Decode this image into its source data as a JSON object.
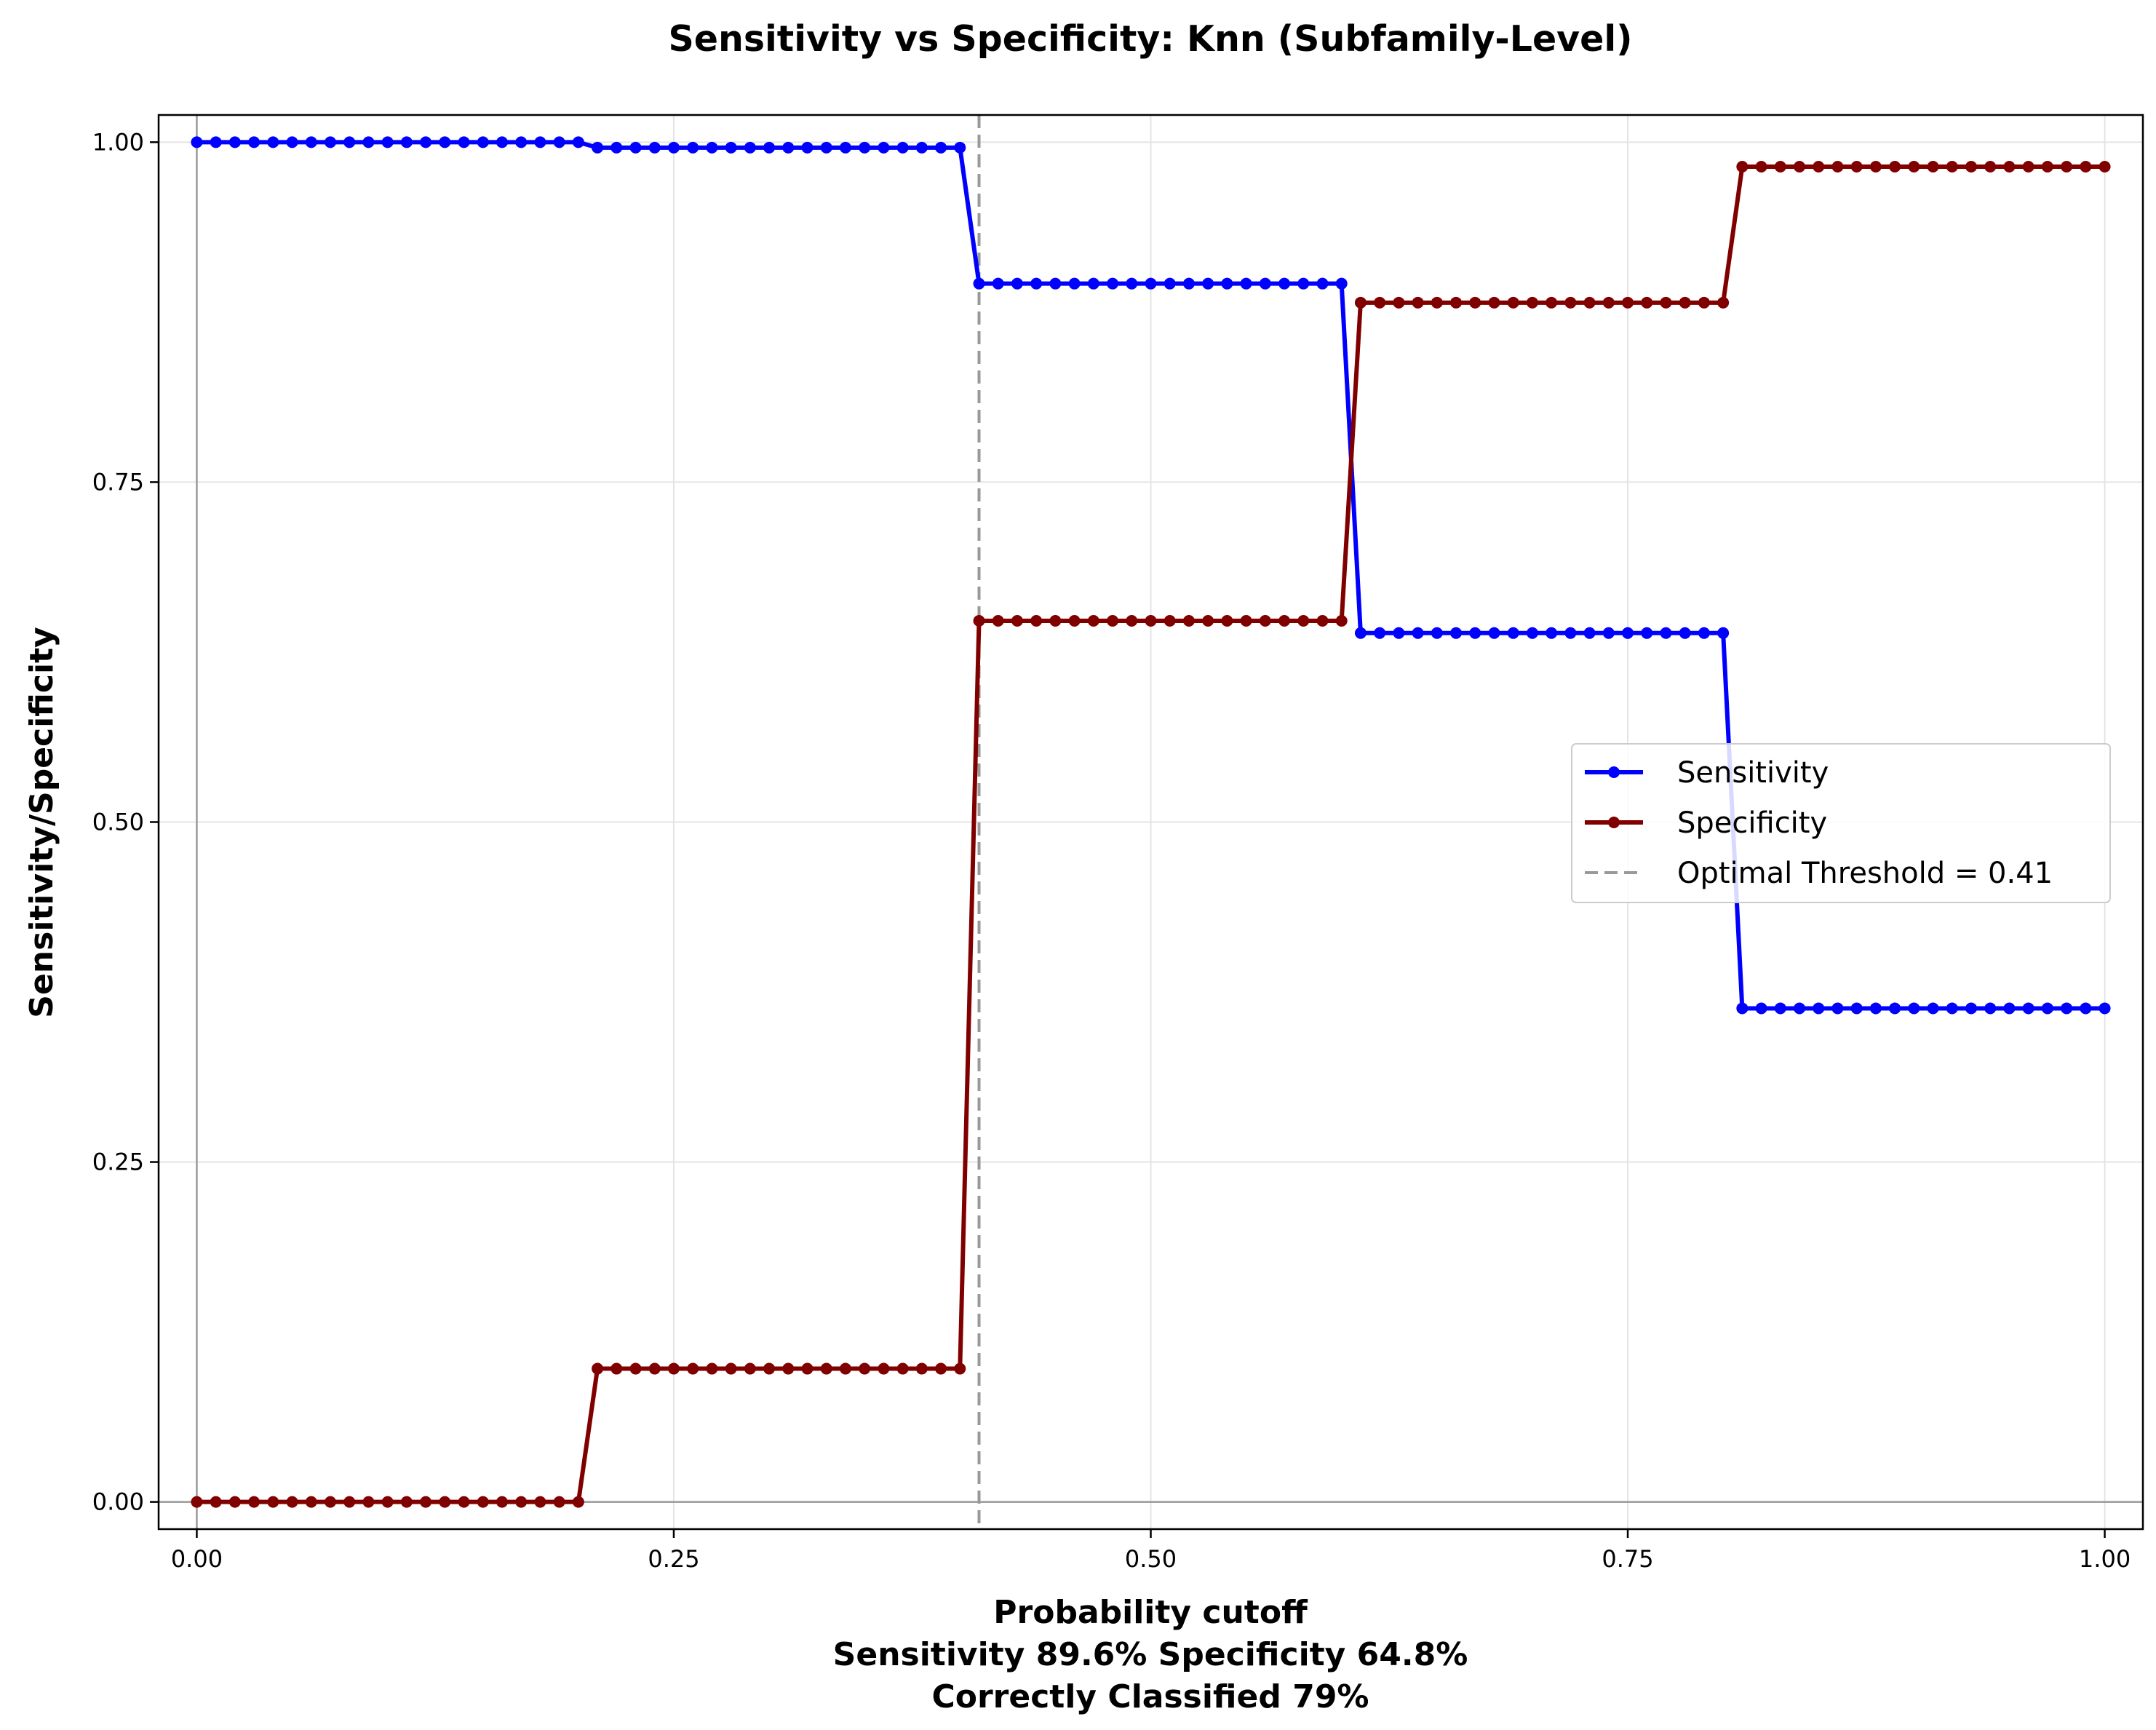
{
  "chart_data": {
    "type": "line",
    "title": "Sensitivity vs Specificity: Knn (Subfamily-Level)",
    "xlabel": "Probability cutoff",
    "xlabel_lines": [
      "Probability cutoff",
      "Sensitivity 89.6% Specificity 64.8%",
      "Correctly Classified 79%"
    ],
    "ylabel": "Sensitivity/Specificity",
    "xlim": [
      -0.02,
      1.02
    ],
    "ylim": [
      -0.02,
      1.02
    ],
    "xticks": [
      0.0,
      0.25,
      0.5,
      0.75,
      1.0
    ],
    "xtick_labels": [
      "0.00",
      "0.25",
      "0.50",
      "0.75",
      "1.00"
    ],
    "yticks": [
      0.0,
      0.25,
      0.5,
      0.75,
      1.0
    ],
    "ytick_labels": [
      "0.00",
      "0.25",
      "0.50",
      "0.75",
      "1.00"
    ],
    "grid": true,
    "legend_position": "center-right",
    "x_step": 0.01,
    "x_range": [
      0.0,
      1.0
    ],
    "series": [
      {
        "name": "Sensitivity",
        "color": "#0000ff",
        "marker": "circle",
        "steps": [
          {
            "x_from": 0.0,
            "x_to": 0.2,
            "y": 1.0
          },
          {
            "x_from": 0.21,
            "x_to": 0.4,
            "y": 0.996
          },
          {
            "x_from": 0.41,
            "x_to": 0.6,
            "y": 0.896
          },
          {
            "x_from": 0.61,
            "x_to": 0.8,
            "y": 0.639
          },
          {
            "x_from": 0.81,
            "x_to": 1.0,
            "y": 0.363
          }
        ]
      },
      {
        "name": "Specificity",
        "color": "#800000",
        "marker": "circle",
        "steps": [
          {
            "x_from": 0.0,
            "x_to": 0.2,
            "y": 0.0
          },
          {
            "x_from": 0.21,
            "x_to": 0.4,
            "y": 0.098
          },
          {
            "x_from": 0.41,
            "x_to": 0.6,
            "y": 0.648
          },
          {
            "x_from": 0.61,
            "x_to": 0.8,
            "y": 0.882
          },
          {
            "x_from": 0.81,
            "x_to": 1.0,
            "y": 0.982
          }
        ]
      }
    ],
    "threshold": {
      "label": "Optimal Threshold = 0.41",
      "x": 0.41,
      "color": "#999999",
      "style": "dashed"
    },
    "reference_lines": {
      "x": 0,
      "y": 0,
      "color": "#999999"
    }
  }
}
